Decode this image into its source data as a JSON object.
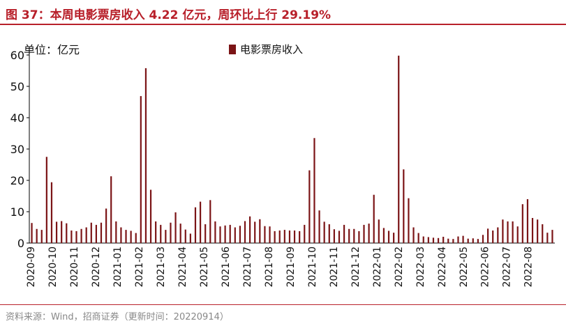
{
  "header": {
    "title": "图 37：本周电影票房收入 4.22 亿元，周环比上行 29.19%"
  },
  "footer": {
    "source": "资料来源：Wind，招商证券（更新时间：20220914）"
  },
  "colors": {
    "accent": "#b8202a",
    "bar": "#7b1416"
  },
  "chart_data": {
    "type": "bar",
    "unit_label": "单位：亿元",
    "legend": [
      "电影票房收入"
    ],
    "legend_position": "top-center",
    "ylim": [
      0,
      60
    ],
    "yticks": [
      0,
      10,
      20,
      30,
      40,
      50,
      60
    ],
    "grid": false,
    "x_tick_labels": [
      "2020-09",
      "2020-10",
      "2020-11",
      "2020-12",
      "2021-01",
      "2021-02",
      "2021-03",
      "2021-04",
      "2021-05",
      "2021-06",
      "2021-07",
      "2021-08",
      "2021-09",
      "2021-10",
      "2021-11",
      "2021-12",
      "2022-01",
      "2022-02",
      "2022-03",
      "2022-04",
      "2022-05",
      "2022-06",
      "2022-07",
      "2022-08"
    ],
    "series": [
      {
        "name": "电影票房收入",
        "values": [
          6.4,
          4.5,
          4.2,
          27.5,
          19.4,
          6.8,
          7.0,
          6.3,
          4.0,
          3.8,
          4.5,
          5.0,
          6.5,
          5.8,
          6.5,
          11.0,
          21.3,
          6.9,
          5.0,
          4.2,
          3.9,
          3.2,
          46.9,
          55.8,
          17.0,
          6.9,
          5.8,
          4.2,
          6.5,
          9.8,
          6.2,
          4.3,
          3.0,
          11.4,
          13.2,
          6.0,
          13.7,
          6.9,
          5.3,
          5.6,
          5.8,
          5.0,
          5.5,
          7.0,
          8.5,
          6.8,
          7.6,
          5.4,
          5.3,
          3.8,
          4.0,
          4.2,
          4.0,
          4.0,
          3.8,
          5.8,
          23.2,
          33.5,
          10.4,
          6.8,
          6.0,
          4.4,
          3.9,
          5.8,
          4.5,
          4.5,
          3.8,
          5.8,
          6.2,
          15.4,
          7.5,
          4.8,
          3.9,
          3.3,
          59.8,
          23.5,
          14.3,
          5.0,
          3.2,
          2.1,
          1.9,
          1.7,
          1.6,
          2.0,
          1.4,
          1.3,
          2.1,
          2.3,
          1.4,
          1.5,
          1.3,
          2.6,
          4.6,
          4.0,
          5.0,
          7.5,
          6.9,
          6.9,
          5.3,
          12.4,
          14.0,
          8.0,
          7.5,
          6.0,
          3.3,
          4.2
        ]
      }
    ]
  }
}
